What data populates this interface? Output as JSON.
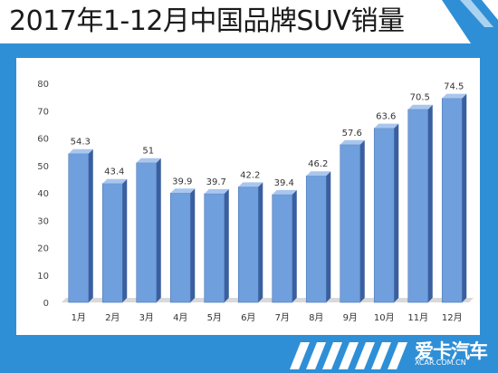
{
  "header": {
    "title": "2017年1-12月中国品牌SUV销量"
  },
  "logo": {
    "name": "爱卡汽车",
    "url_text": "XCAR.COM.CN"
  },
  "colors": {
    "background": "#2f8fd6",
    "bar_front": "#6f9fdc",
    "bar_side": "#3a5f9e",
    "bar_top": "#a9c6ee"
  },
  "chart_data": {
    "type": "bar",
    "categories": [
      "1月",
      "2月",
      "3月",
      "4月",
      "5月",
      "6月",
      "7月",
      "8月",
      "9月",
      "10月",
      "11月",
      "12月"
    ],
    "values": [
      54.3,
      43.4,
      51,
      39.9,
      39.7,
      42.2,
      39.4,
      46.2,
      57.6,
      63.6,
      70.5,
      74.5
    ],
    "value_labels": [
      "54.3",
      "43.4",
      "51",
      "39.9",
      "39.7",
      "42.2",
      "39.4",
      "46.2",
      "57.6",
      "63.6",
      "70.5",
      "74.5"
    ],
    "ylim": [
      0,
      80
    ],
    "yticks": [
      0,
      10,
      20,
      30,
      40,
      50,
      60,
      70,
      80
    ],
    "title": "",
    "xlabel": "",
    "ylabel": "",
    "grid": false,
    "legend": "none"
  }
}
